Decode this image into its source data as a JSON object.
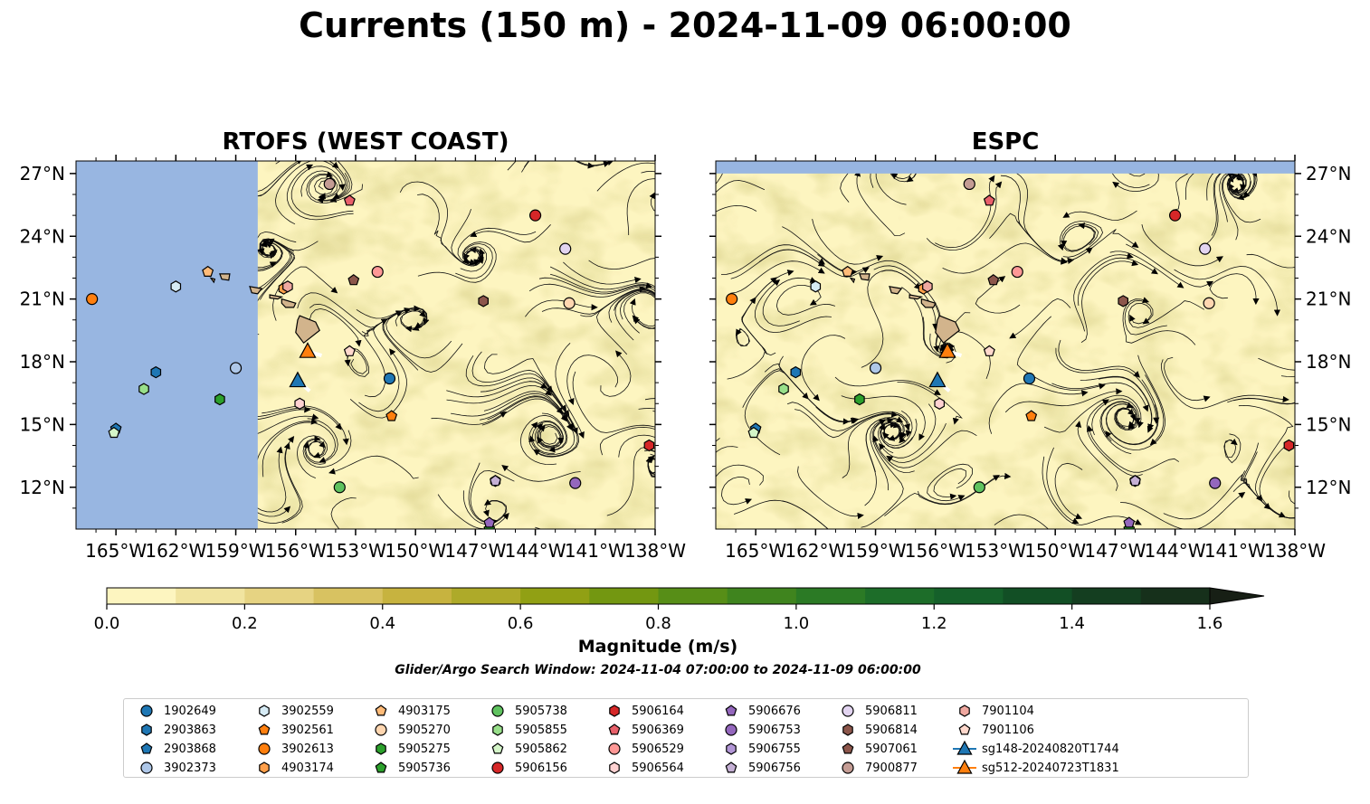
{
  "title": "Currents (150 m) - 2024-11-09 06:00:00",
  "panels": [
    {
      "title": "RTOFS (WEST COAST)"
    },
    {
      "title": "ESPC"
    }
  ],
  "axes": {
    "x_ticks": [
      "165°W",
      "162°W",
      "159°W",
      "156°W",
      "153°W",
      "150°W",
      "147°W",
      "144°W",
      "141°W",
      "138°W"
    ],
    "y_ticks": [
      "27°N",
      "24°N",
      "21°N",
      "18°N",
      "15°N",
      "12°N"
    ],
    "lon_range": [
      -167,
      -138
    ],
    "lat_range": [
      10,
      27.6
    ]
  },
  "colorbar": {
    "label": "Magnitude (m/s)",
    "ticks": [
      "0.0",
      "0.2",
      "0.4",
      "0.6",
      "0.8",
      "1.0",
      "1.2",
      "1.4",
      "1.6"
    ],
    "range": [
      0,
      1.6
    ],
    "colors": [
      "#fdf5c0",
      "#f1e4a0",
      "#e6d382",
      "#d8c261",
      "#c7b33f",
      "#aeaa29",
      "#91a014",
      "#739711",
      "#578e17",
      "#3f841e",
      "#2b7a25",
      "#1d6d29",
      "#15602a",
      "#124f25",
      "#143e20",
      "#16301b",
      "#171f15"
    ]
  },
  "search_window": "Glider/Argo Search Window: 2024-11-04 07:00:00 to 2024-11-09 06:00:00",
  "colors": {
    "land": "#d2b48c",
    "ocean_mask": "#98b6e1"
  },
  "legend": [
    {
      "label": "1902649",
      "marker": "circle",
      "color": "#1f77b4"
    },
    {
      "label": "2903863",
      "marker": "hexagon",
      "color": "#1f77b4"
    },
    {
      "label": "2903868",
      "marker": "pentagon",
      "color": "#1f77b4"
    },
    {
      "label": "3902373",
      "marker": "circle",
      "color": "#aec7e8"
    },
    {
      "label": "3902559",
      "marker": "hexagon",
      "color": "#d6ebf5"
    },
    {
      "label": "3902561",
      "marker": "pentagon",
      "color": "#ff7f0e"
    },
    {
      "label": "3902613",
      "marker": "circle",
      "color": "#ff7f0e"
    },
    {
      "label": "4903174",
      "marker": "hexagon",
      "color": "#ff9f4a"
    },
    {
      "label": "4903175",
      "marker": "pentagon",
      "color": "#ffbb78"
    },
    {
      "label": "5905270",
      "marker": "circle",
      "color": "#ffd6b0"
    },
    {
      "label": "5905275",
      "marker": "hexagon",
      "color": "#2ca02c"
    },
    {
      "label": "5905736",
      "marker": "pentagon",
      "color": "#2ca02c"
    },
    {
      "label": "5905738",
      "marker": "circle",
      "color": "#5fc25f"
    },
    {
      "label": "5905855",
      "marker": "hexagon",
      "color": "#98df8a"
    },
    {
      "label": "5905862",
      "marker": "pentagon",
      "color": "#d4f5c8"
    },
    {
      "label": "5906156",
      "marker": "circle",
      "color": "#d62728"
    },
    {
      "label": "5906164",
      "marker": "hexagon",
      "color": "#d62728"
    },
    {
      "label": "5906369",
      "marker": "pentagon",
      "color": "#e8606a"
    },
    {
      "label": "5906529",
      "marker": "circle",
      "color": "#ff9896"
    },
    {
      "label": "5906564",
      "marker": "hexagon",
      "color": "#ffd2d2"
    },
    {
      "label": "5906676",
      "marker": "pentagon",
      "color": "#9467bd"
    },
    {
      "label": "5906753",
      "marker": "circle",
      "color": "#9467bd"
    },
    {
      "label": "5906755",
      "marker": "hexagon",
      "color": "#b296d6"
    },
    {
      "label": "5906756",
      "marker": "pentagon",
      "color": "#c5b0d5"
    },
    {
      "label": "5906811",
      "marker": "circle",
      "color": "#e2d4f0"
    },
    {
      "label": "5906814",
      "marker": "hexagon",
      "color": "#8c564b"
    },
    {
      "label": "5907061",
      "marker": "pentagon",
      "color": "#8c564b"
    },
    {
      "label": "7900877",
      "marker": "circle",
      "color": "#c49c94"
    },
    {
      "label": "7901104",
      "marker": "hexagon",
      "color": "#f0a8a0"
    },
    {
      "label": "7901106",
      "marker": "pentagon",
      "color": "#ffd8cc"
    },
    {
      "label": "sg148-20240820T1744",
      "marker": "triangle-line",
      "color": "#1f77b4"
    },
    {
      "label": "sg512-20240723T1831",
      "marker": "triangle-line",
      "color": "#ff7f0e"
    }
  ],
  "floats": [
    {
      "id": "1902649",
      "lon": -151.3,
      "lat": 17.2
    },
    {
      "id": "2903863",
      "lon": -163.0,
      "lat": 17.5
    },
    {
      "id": "2903868",
      "lon": -165.0,
      "lat": 14.8
    },
    {
      "id": "3902373",
      "lon": -159.0,
      "lat": 17.7
    },
    {
      "id": "3902559",
      "lon": -162.0,
      "lat": 21.6
    },
    {
      "id": "3902561",
      "lon": -151.2,
      "lat": 15.4
    },
    {
      "id": "3902613",
      "lon": -166.2,
      "lat": 21.0
    },
    {
      "id": "4903174",
      "lon": -156.6,
      "lat": 21.5
    },
    {
      "id": "4903175",
      "lon": -160.4,
      "lat": 22.3
    },
    {
      "id": "5905270",
      "lon": -142.3,
      "lat": 20.8
    },
    {
      "id": "5905275",
      "lon": -159.8,
      "lat": 16.2
    },
    {
      "id": "5905736",
      "lon": -146.3,
      "lat": 10.0
    },
    {
      "id": "5905738",
      "lon": -153.8,
      "lat": 12.0
    },
    {
      "id": "5905855",
      "lon": -163.6,
      "lat": 16.7
    },
    {
      "id": "5905862",
      "lon": -165.1,
      "lat": 14.6
    },
    {
      "id": "5906156",
      "lon": -144.0,
      "lat": 25.0
    },
    {
      "id": "5906164",
      "lon": -138.3,
      "lat": 14.0
    },
    {
      "id": "5906369",
      "lon": -153.3,
      "lat": 25.7
    },
    {
      "id": "5906529",
      "lon": -151.9,
      "lat": 22.3
    },
    {
      "id": "5906564",
      "lon": -155.8,
      "lat": 16.0
    },
    {
      "id": "5906676",
      "lon": -146.3,
      "lat": 10.3
    },
    {
      "id": "5906753",
      "lon": -142.0,
      "lat": 12.2
    },
    {
      "id": "5906755",
      "lon": -146.0,
      "lat": 12.3
    },
    {
      "id": "5906756",
      "lon": -146.0,
      "lat": 12.3
    },
    {
      "id": "5906811",
      "lon": -142.5,
      "lat": 23.4
    },
    {
      "id": "5906814",
      "lon": -146.6,
      "lat": 20.9
    },
    {
      "id": "5907061",
      "lon": -153.1,
      "lat": 21.9
    },
    {
      "id": "7900877",
      "lon": -154.3,
      "lat": 26.5
    },
    {
      "id": "7901104",
      "lon": -156.4,
      "lat": 21.6
    },
    {
      "id": "7901106",
      "lon": -153.3,
      "lat": 18.5
    }
  ],
  "gliders": [
    {
      "id": "sg148-20240820T1744",
      "lon": -155.9,
      "lat": 17.1
    },
    {
      "id": "sg512-20240723T1831",
      "lon": -155.4,
      "lat": 18.5
    }
  ]
}
